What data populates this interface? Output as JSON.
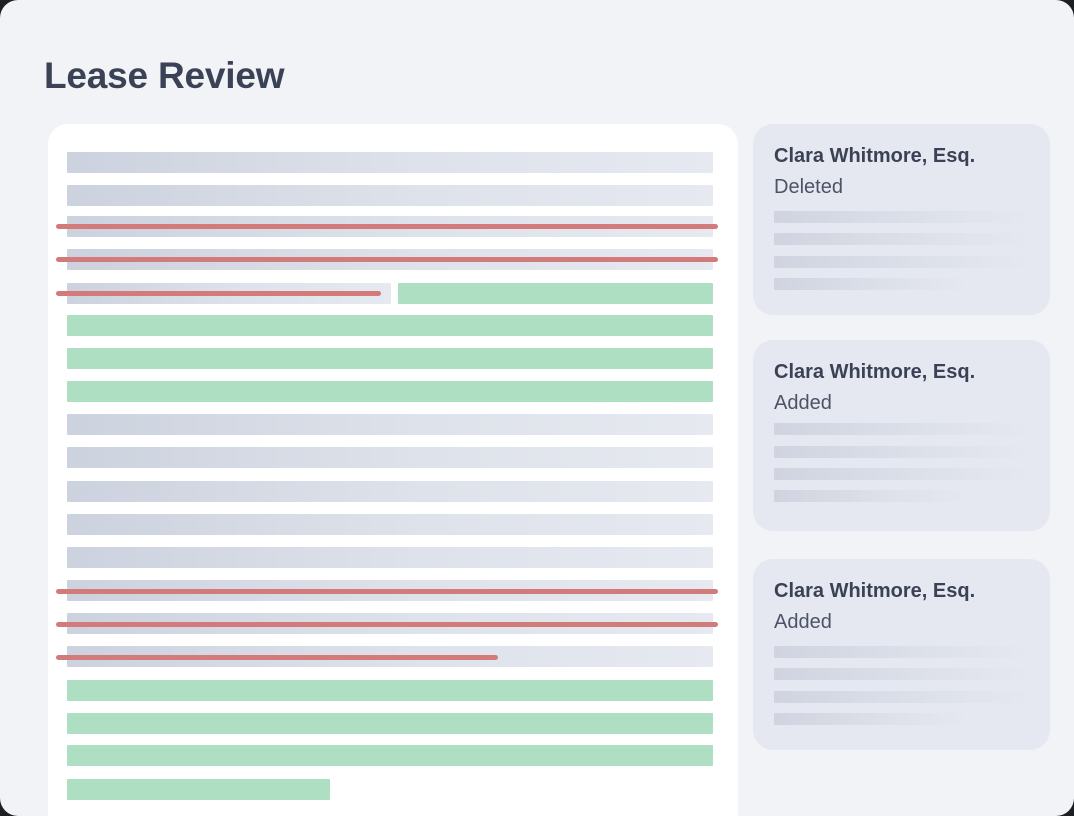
{
  "page": {
    "title": "Lease Review"
  },
  "colors": {
    "background": "#f1f3f7",
    "document_panel": "#ffffff",
    "placeholder_line": "#d4d9e3",
    "inserted_text": "#aedfc2",
    "deleted_strike": "#d27b7a",
    "comment_card": "#e5e8f0",
    "title_text": "#3b4256"
  },
  "document": {
    "line_count": 20,
    "deleted_line_count": 6,
    "inserted_line_count": 8
  },
  "comments": [
    {
      "author": "Clara Whitmore, Esq.",
      "action": "Deleted"
    },
    {
      "author": "Clara Whitmore, Esq.",
      "action": "Added"
    },
    {
      "author": "Clara Whitmore, Esq.",
      "action": "Added"
    }
  ]
}
